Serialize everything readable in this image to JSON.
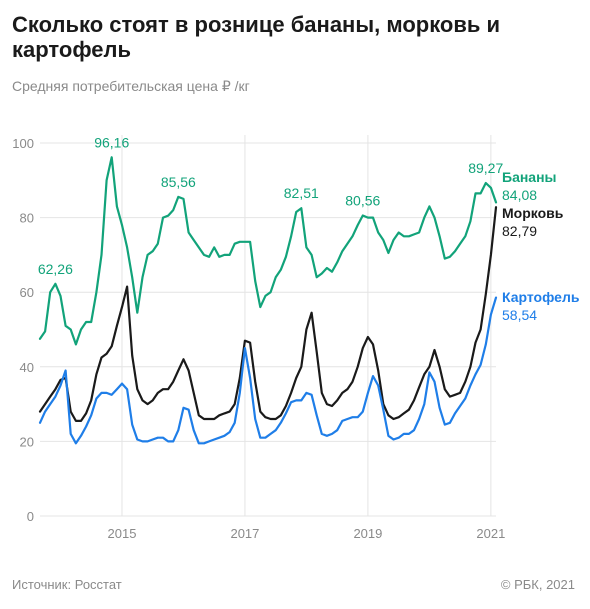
{
  "title": "Сколько стоят в рознице бананы, морковь и картофель",
  "subtitle": "Средняя потребительская цена ₽ /кг",
  "source": "Источник: Росстат",
  "copyright": "© РБК, 2021",
  "colors": {
    "bananas": "#12a37a",
    "carrots": "#1a1a1a",
    "potatoes": "#1f7ee8",
    "grid": "#e4e4e4",
    "tick": "#8a8a8a"
  },
  "chart_data": {
    "type": "line",
    "title": "Сколько стоят в рознице бананы, морковь и картофель",
    "ylabel": "Средняя потребительская цена ₽ /кг",
    "ylim": [
      0,
      100
    ],
    "yticks": [
      "0",
      "20",
      "40",
      "60",
      "80",
      "100"
    ],
    "xticks": [
      "2015",
      "2017",
      "2019",
      "2021"
    ],
    "x_start": "2013-09",
    "x_end": "2021-05",
    "grid": true,
    "series": [
      {
        "key": "bananas",
        "name": "Бананы",
        "last_label": "84,08",
        "values": [
          47.5,
          49.5,
          60,
          62.26,
          59,
          51,
          50,
          46,
          50,
          52,
          52,
          60,
          70,
          90,
          96.16,
          83,
          78,
          72,
          64,
          54.5,
          64,
          70,
          71,
          73,
          80,
          80.5,
          82,
          85.56,
          85,
          76,
          74,
          72,
          70,
          69.5,
          72,
          69.5,
          70,
          70,
          73,
          73.5,
          73.5,
          73.5,
          63,
          56,
          59,
          60,
          64,
          66,
          69.5,
          75,
          81.5,
          82.51,
          72,
          70,
          64,
          65,
          66.5,
          65.5,
          68,
          71,
          73,
          75,
          78,
          80.56,
          80,
          80,
          76,
          74,
          70.5,
          74,
          76,
          75,
          75,
          75.5,
          76,
          80,
          83,
          80,
          75,
          69,
          69.5,
          71,
          73,
          75,
          79,
          86.5,
          86.5,
          89.27,
          88,
          84.08
        ],
        "end_value": 84.08
      },
      {
        "key": "carrots",
        "name": "Морковь",
        "last_label": "82,79",
        "values": [
          28,
          30,
          32,
          34,
          36.5,
          37,
          28,
          25.5,
          25.5,
          27.5,
          31,
          38,
          42.5,
          43.5,
          45.5,
          51,
          56,
          61.5,
          43,
          34,
          31,
          30,
          31,
          33,
          34,
          34,
          36,
          39,
          42,
          39,
          33,
          27,
          26,
          26,
          26,
          27,
          27.5,
          28,
          30,
          37,
          47,
          46.5,
          36,
          28,
          26.5,
          26,
          26,
          27,
          29.5,
          33,
          37,
          40,
          50,
          54.5,
          44,
          33,
          30,
          29.5,
          31,
          33,
          34,
          36,
          40,
          45,
          48,
          46,
          39,
          30,
          27,
          26,
          26.5,
          27.5,
          28.5,
          31,
          34.5,
          38,
          40,
          44.5,
          40,
          34,
          32,
          32.5,
          33,
          36,
          40,
          46.5,
          50,
          59.5,
          70,
          82.79
        ],
        "end_value": 82.79
      },
      {
        "key": "potatoes",
        "name": "Картофель",
        "last_label": "58,54",
        "values": [
          25,
          28,
          30,
          32,
          35,
          39,
          22,
          19.5,
          21.5,
          24,
          27,
          31.5,
          33,
          33,
          32.5,
          34,
          35.5,
          34,
          24.5,
          20.5,
          20,
          20,
          20.5,
          21,
          21,
          20,
          20,
          23,
          29,
          28.5,
          23,
          19.5,
          19.5,
          20,
          20.5,
          21,
          21.5,
          22.5,
          25,
          33,
          45,
          37,
          26,
          21,
          21,
          22,
          23,
          25,
          27.5,
          30.5,
          31,
          31,
          33,
          32.5,
          27,
          22,
          21.5,
          22,
          23,
          25.5,
          26,
          26.5,
          26.5,
          28,
          33,
          37.5,
          35,
          28.5,
          21.5,
          20.5,
          21,
          22,
          22,
          23,
          26,
          30,
          38.5,
          36,
          29,
          24.5,
          25,
          27.5,
          29.5,
          31.5,
          35,
          38,
          40.5,
          46,
          54,
          58.54
        ],
        "end_value": 58.54
      }
    ],
    "annotations": [
      {
        "series": "bananas",
        "index": 3,
        "label": "62,26"
      },
      {
        "series": "bananas",
        "index": 14,
        "label": "96,16"
      },
      {
        "series": "bananas",
        "index": 27,
        "label": "85,56"
      },
      {
        "series": "bananas",
        "index": 51,
        "label": "82,51"
      },
      {
        "series": "bananas",
        "index": 63,
        "label": "80,56"
      },
      {
        "series": "bananas",
        "index": 87,
        "label": "89,27"
      }
    ]
  }
}
